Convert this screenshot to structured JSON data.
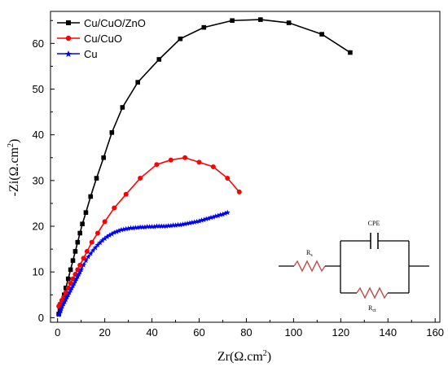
{
  "chart_data": {
    "type": "scatter",
    "xlabel_main": "Zr",
    "xlabel_unit": "(Ω.cm",
    "xlabel_sup": "2",
    "xlabel_close": ")",
    "ylabel_main": "-Zi",
    "ylabel_unit": "(Ω.cm",
    "ylabel_sup": "2",
    "ylabel_close": ")",
    "xlim": [
      -3,
      162
    ],
    "ylim": [
      -1,
      67
    ],
    "xticks": [
      0,
      20,
      40,
      60,
      80,
      100,
      120,
      140,
      160
    ],
    "yticks": [
      0,
      10,
      20,
      30,
      40,
      50,
      60
    ],
    "legend_position": "top-left",
    "series": [
      {
        "name": "Cu/CuO/ZnO",
        "color": "#000000",
        "marker": "square",
        "x": [
          0.5,
          1,
          1.5,
          2,
          2.8,
          3.5,
          4.5,
          5.5,
          6.5,
          7.5,
          8.5,
          9.5,
          10.5,
          12,
          14,
          16.5,
          19.5,
          23,
          27.5,
          34,
          43,
          52,
          62,
          74,
          86,
          98,
          112,
          124
        ],
        "y": [
          0.8,
          1.5,
          2.5,
          3.5,
          5,
          6.5,
          8.5,
          10.5,
          12.5,
          14.5,
          16.5,
          18.5,
          20.5,
          23,
          26.5,
          30.5,
          35,
          40.5,
          46,
          51.5,
          56.5,
          61,
          63.5,
          65,
          65.2,
          64.5,
          62,
          58
        ]
      },
      {
        "name": "Cu/CuO",
        "color": "#ff0000",
        "marker": "circle",
        "x": [
          0.5,
          1,
          1.8,
          2.6,
          3.5,
          4.5,
          5.5,
          6.5,
          7.5,
          8.5,
          9.5,
          11,
          12.5,
          14.5,
          17,
          20,
          24,
          29,
          35,
          42,
          48,
          54,
          60,
          66,
          72,
          77
        ],
        "y": [
          2.5,
          3,
          3.8,
          4.5,
          5.5,
          6.5,
          7.5,
          8.5,
          9.5,
          10.5,
          11.5,
          13,
          14.5,
          16.5,
          18.5,
          21,
          24,
          27,
          30.5,
          33.5,
          34.5,
          35,
          34,
          33,
          30.5,
          27.5
        ]
      },
      {
        "name": "Cu",
        "color": "#0000ff",
        "marker": "star",
        "x": [
          0.5,
          0.8,
          1.2,
          1.6,
          2,
          2.5,
          3,
          3.5,
          4,
          4.5,
          5,
          5.5,
          6,
          6.5,
          7,
          7.5,
          8,
          8.5,
          9,
          9.5,
          10,
          11,
          12,
          13,
          14,
          15,
          16,
          17,
          18,
          19,
          20,
          21,
          22,
          23,
          24,
          25,
          26,
          27,
          28,
          29,
          30,
          31,
          32,
          33,
          34,
          35,
          36,
          37,
          38,
          39,
          40,
          41,
          42,
          43,
          44,
          45,
          46,
          47,
          48,
          49,
          50,
          51,
          52,
          53,
          54,
          55,
          56,
          57,
          58,
          59,
          60,
          61,
          62,
          63,
          64,
          65,
          66,
          67,
          68,
          69,
          70,
          71,
          72
        ],
        "y": [
          0.6,
          1,
          1.5,
          2,
          2.5,
          3,
          3.5,
          4,
          4.5,
          5,
          5.5,
          6,
          6.5,
          7,
          7.5,
          8,
          8.5,
          9,
          9.5,
          10,
          10.5,
          11.5,
          12.5,
          13.3,
          14,
          14.7,
          15.3,
          15.9,
          16.4,
          16.9,
          17.3,
          17.7,
          18,
          18.3,
          18.6,
          18.8,
          19,
          19.2,
          19.3,
          19.4,
          19.5,
          19.6,
          19.6,
          19.7,
          19.7,
          19.8,
          19.8,
          19.8,
          19.9,
          19.9,
          19.9,
          19.9,
          20,
          20,
          20,
          20,
          20,
          20.1,
          20.1,
          20.2,
          20.2,
          20.3,
          20.3,
          20.4,
          20.5,
          20.6,
          20.7,
          20.8,
          20.9,
          21,
          21.1,
          21.3,
          21.4,
          21.6,
          21.7,
          21.9,
          22,
          22.2,
          22.3,
          22.5,
          22.6,
          22.8,
          23
        ]
      }
    ]
  },
  "circuit": {
    "cpe_label": "CPE",
    "rs_label_main": "R",
    "rs_label_sub": "s",
    "rct_label_main": "R",
    "rct_label_sub": "ct",
    "resistor_color": "#c0504d"
  }
}
